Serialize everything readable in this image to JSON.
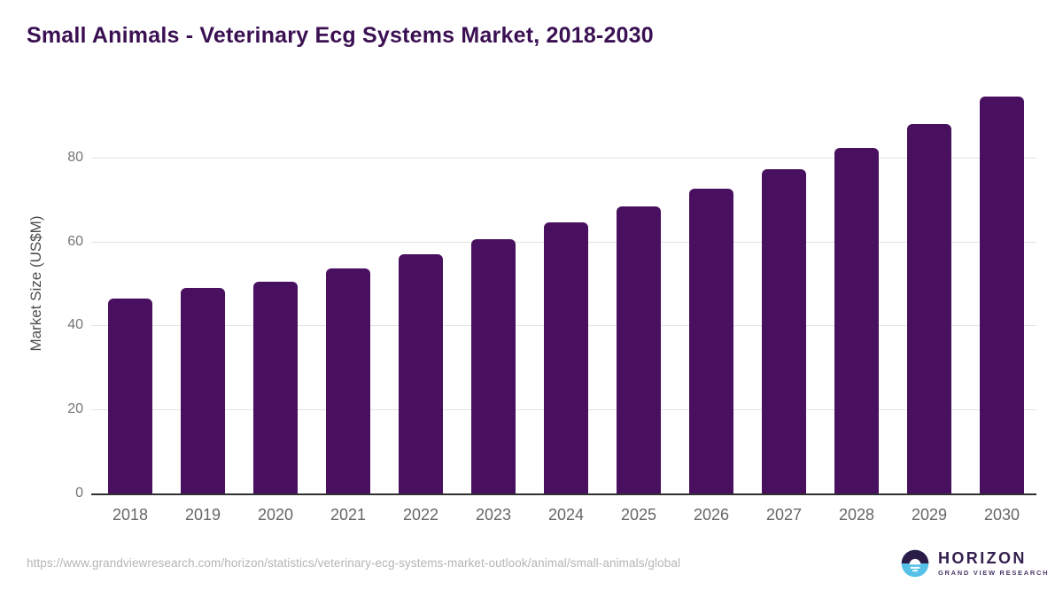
{
  "title": "Small Animals - Veterinary Ecg Systems Market, 2018-2030",
  "chart_data": {
    "type": "bar",
    "title": "Small Animals - Veterinary Ecg Systems Market, 2018-2030",
    "categories": [
      "2018",
      "2019",
      "2020",
      "2021",
      "2022",
      "2023",
      "2024",
      "2025",
      "2026",
      "2027",
      "2028",
      "2029",
      "2030"
    ],
    "values": [
      46.4,
      49.0,
      50.4,
      53.5,
      57.0,
      60.6,
      64.6,
      68.4,
      72.6,
      77.3,
      82.3,
      88.0,
      94.5
    ],
    "xlabel": "",
    "ylabel": "Market Size (US$M)",
    "ylim": [
      0,
      100
    ],
    "yticks": [
      0,
      20,
      40,
      60,
      80
    ],
    "grid": true,
    "legend": false,
    "bar_color": "#49105f"
  },
  "footer": {
    "source_url": "https://www.grandviewresearch.com/horizon/statistics/veterinary-ecg-systems-market-outlook/animal/small-animals/global",
    "logo": {
      "name": "HORIZON",
      "subtitle": "GRAND VIEW RESEARCH"
    }
  },
  "colors": {
    "bar_color": "#49105f",
    "title_color": "#3b1053",
    "axis_color": "#2f2f2f",
    "grid_color": "#e3e3e3",
    "tick_label_color": "#757575",
    "year_label_color": "#666666",
    "ylabel_color": "#4d4d4d",
    "url_color": "#b5b5b5",
    "logo_dark": "#2b1b47",
    "logo_blue": "#56c1e8",
    "logo_text": "#33204e",
    "logo_subtext": "#4a3a6b"
  }
}
